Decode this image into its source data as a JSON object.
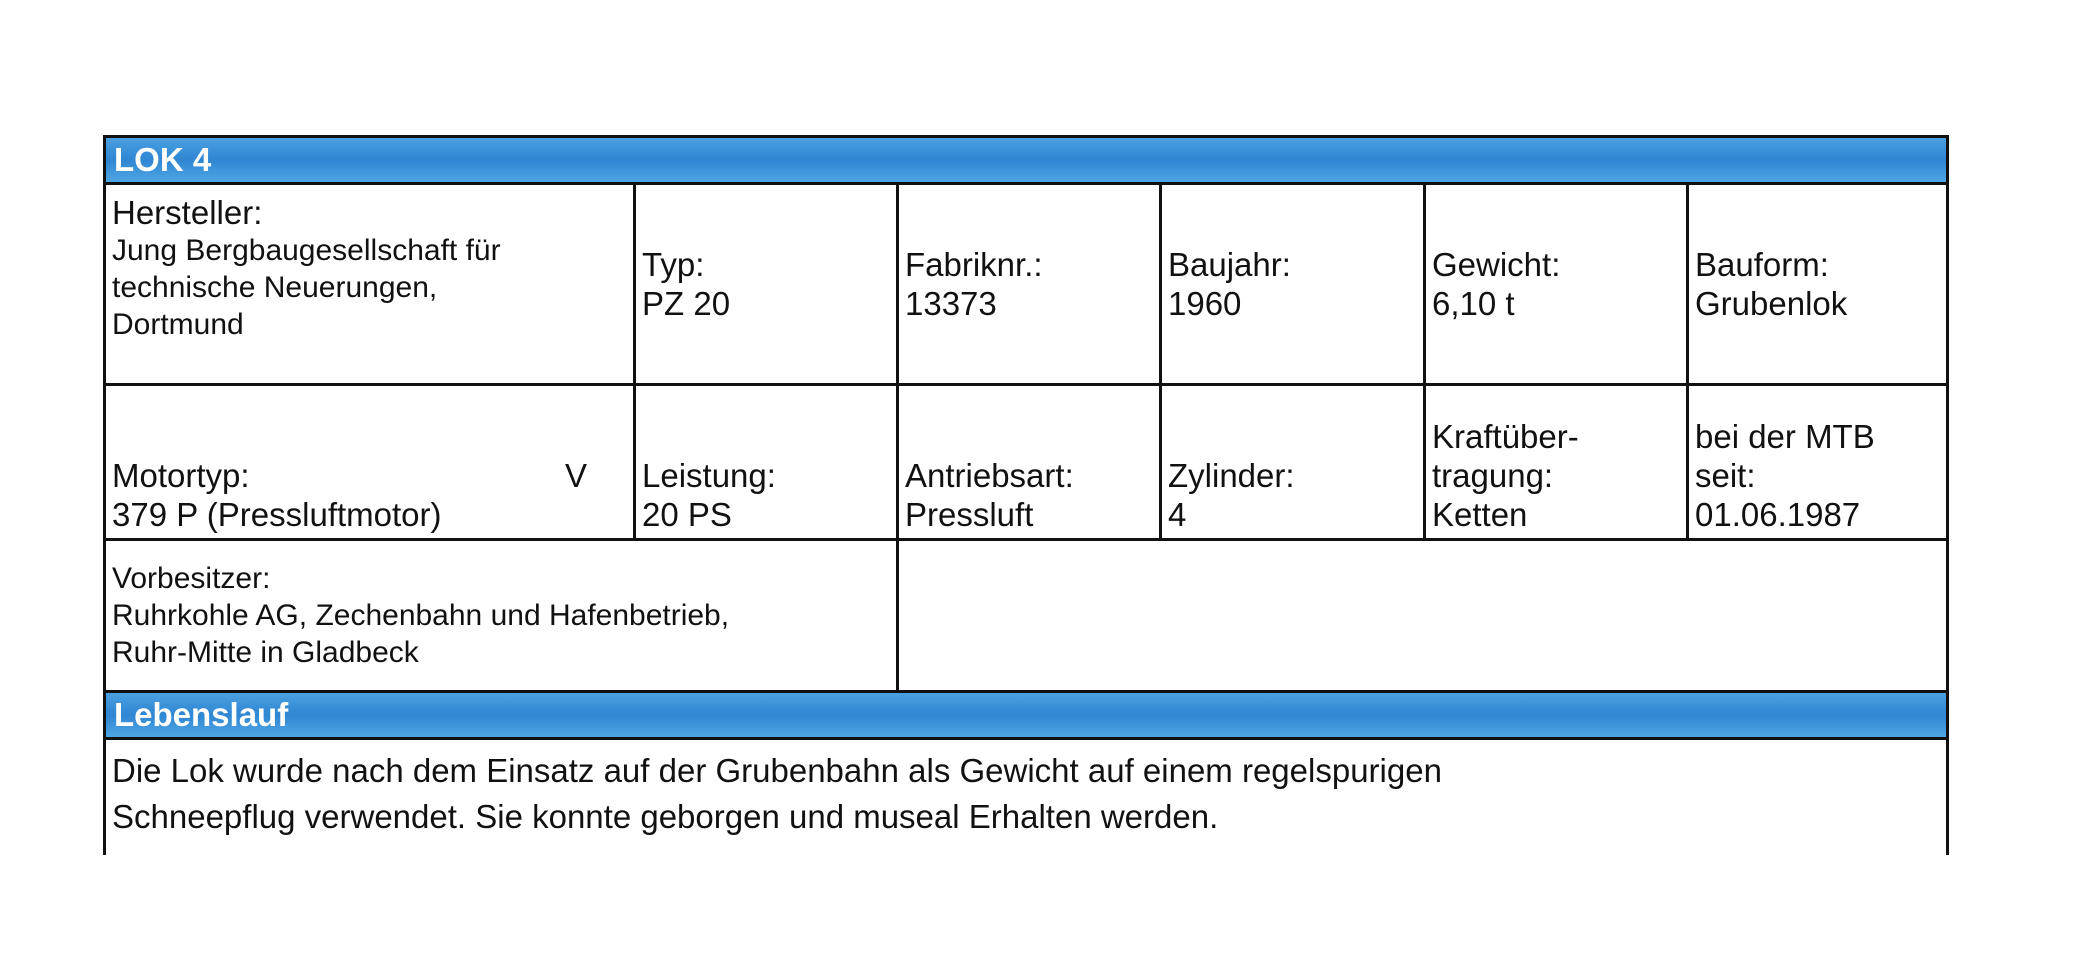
{
  "title": "LOK 4",
  "row1": [
    {
      "label": "Hersteller:",
      "value": [
        "Jung Bergbaugesellschaft für",
        "technische Neuerungen,",
        "Dortmund"
      ]
    },
    {
      "label": "Typ:",
      "value": [
        "PZ 20"
      ]
    },
    {
      "label": "Fabriknr.:",
      "value": [
        "13373"
      ]
    },
    {
      "label": "Baujahr:",
      "value": [
        "1960"
      ]
    },
    {
      "label": "Gewicht:",
      "value": [
        "6,10 t"
      ]
    },
    {
      "label": "Bauform:",
      "value": [
        "Grubenlok"
      ]
    }
  ],
  "row2": [
    {
      "label": "Motortyp:",
      "label_suffix": "V",
      "value": [
        "379 P (Pressluftmotor)"
      ]
    },
    {
      "label": "Leistung:",
      "value": [
        "20 PS"
      ]
    },
    {
      "label": "Antriebsart:",
      "value": [
        "Pressluft"
      ]
    },
    {
      "label": "Zylinder:",
      "value": [
        "4"
      ]
    },
    {
      "label_lines": [
        "Kraftüber-",
        "tragung:"
      ],
      "value": [
        "Ketten"
      ]
    },
    {
      "label_lines": [
        "bei der MTB",
        "seit:"
      ],
      "value": [
        "01.06.1987"
      ]
    }
  ],
  "row3": {
    "label": "Vorbesitzer:",
    "value": [
      "Ruhrkohle AG, Zechenbahn und Hafenbetrieb,",
      "Ruhr-Mitte in Gladbeck"
    ]
  },
  "section": {
    "title": "Lebenslauf",
    "text": [
      "Die Lok wurde nach dem Einsatz auf der Grubenbahn als Gewicht auf einem regelspurigen",
      "Schneepflug verwendet. Sie konnte geborgen und museal Erhalten werden."
    ]
  }
}
